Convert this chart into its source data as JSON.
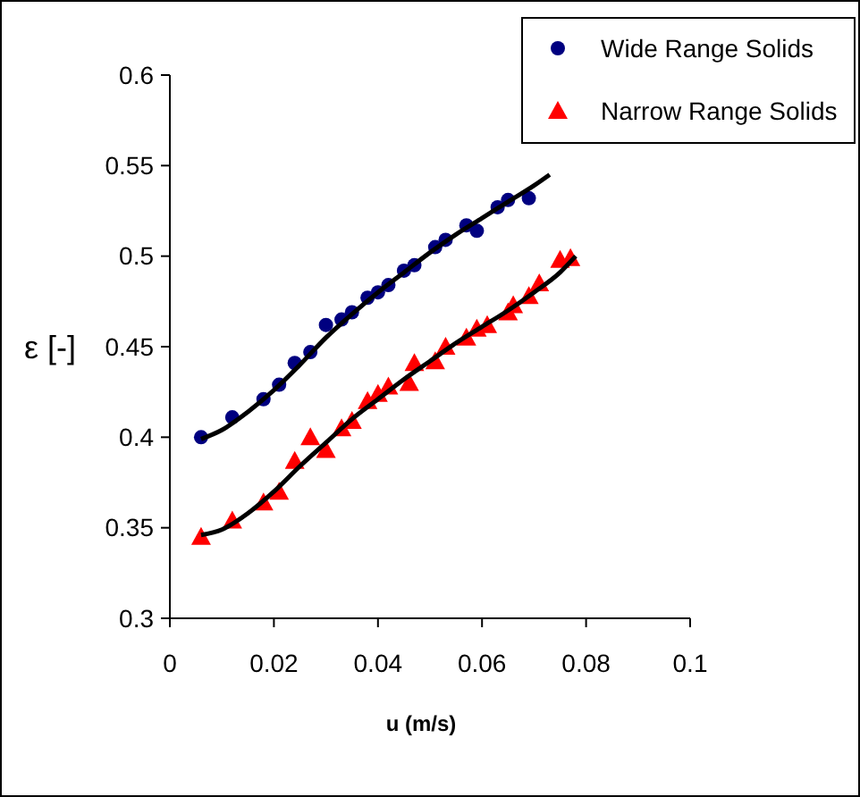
{
  "chart_data": {
    "type": "scatter",
    "xlabel": "u (m/s)",
    "ylabel": "ε [-]",
    "xlim": [
      0,
      0.1
    ],
    "ylim": [
      0.3,
      0.6
    ],
    "xticks": [
      0,
      0.02,
      0.04,
      0.06,
      0.08,
      0.1
    ],
    "yticks": [
      0.3,
      0.35,
      0.4,
      0.45,
      0.5,
      0.55,
      0.6
    ],
    "grid": false,
    "legend": "top right",
    "series": [
      {
        "name": "Wide Range Solids",
        "marker": "circle",
        "color": "#000080",
        "x": [
          0.006,
          0.012,
          0.018,
          0.021,
          0.024,
          0.027,
          0.03,
          0.033,
          0.035,
          0.038,
          0.04,
          0.042,
          0.045,
          0.047,
          0.051,
          0.053,
          0.057,
          0.059,
          0.063,
          0.065,
          0.069
        ],
        "values": [
          0.4,
          0.411,
          0.421,
          0.429,
          0.441,
          0.447,
          0.462,
          0.465,
          0.469,
          0.477,
          0.48,
          0.484,
          0.492,
          0.495,
          0.505,
          0.509,
          0.517,
          0.514,
          0.527,
          0.531,
          0.532
        ]
      },
      {
        "name": "Narrow Range Solids",
        "marker": "triangle",
        "color": "#ff0000",
        "x": [
          0.006,
          0.012,
          0.018,
          0.021,
          0.024,
          0.027,
          0.03,
          0.033,
          0.035,
          0.038,
          0.04,
          0.042,
          0.046,
          0.047,
          0.051,
          0.053,
          0.057,
          0.059,
          0.061,
          0.065,
          0.066,
          0.069,
          0.071,
          0.075,
          0.077
        ],
        "values": [
          0.345,
          0.354,
          0.364,
          0.37,
          0.387,
          0.4,
          0.393,
          0.405,
          0.409,
          0.42,
          0.424,
          0.428,
          0.43,
          0.441,
          0.442,
          0.45,
          0.455,
          0.46,
          0.462,
          0.469,
          0.473,
          0.478,
          0.485,
          0.498,
          0.499
        ]
      },
      {
        "type": "line",
        "marker": "none",
        "line_style": "solid",
        "color": "#000000",
        "x": [
          0.006,
          0.01,
          0.015,
          0.02,
          0.025,
          0.03,
          0.035,
          0.04,
          0.045,
          0.05,
          0.055,
          0.06,
          0.065,
          0.07,
          0.073
        ],
        "values": [
          0.399,
          0.404,
          0.414,
          0.426,
          0.44,
          0.455,
          0.468,
          0.48,
          0.491,
          0.502,
          0.512,
          0.521,
          0.53,
          0.539,
          0.545
        ]
      },
      {
        "type": "line",
        "marker": "none",
        "line_style": "solid",
        "color": "#000000",
        "x": [
          0.006,
          0.01,
          0.015,
          0.02,
          0.025,
          0.03,
          0.035,
          0.04,
          0.045,
          0.05,
          0.055,
          0.06,
          0.065,
          0.07,
          0.075,
          0.078
        ],
        "values": [
          0.346,
          0.349,
          0.358,
          0.37,
          0.384,
          0.397,
          0.41,
          0.421,
          0.432,
          0.442,
          0.452,
          0.461,
          0.47,
          0.48,
          0.491,
          0.5
        ]
      }
    ]
  }
}
